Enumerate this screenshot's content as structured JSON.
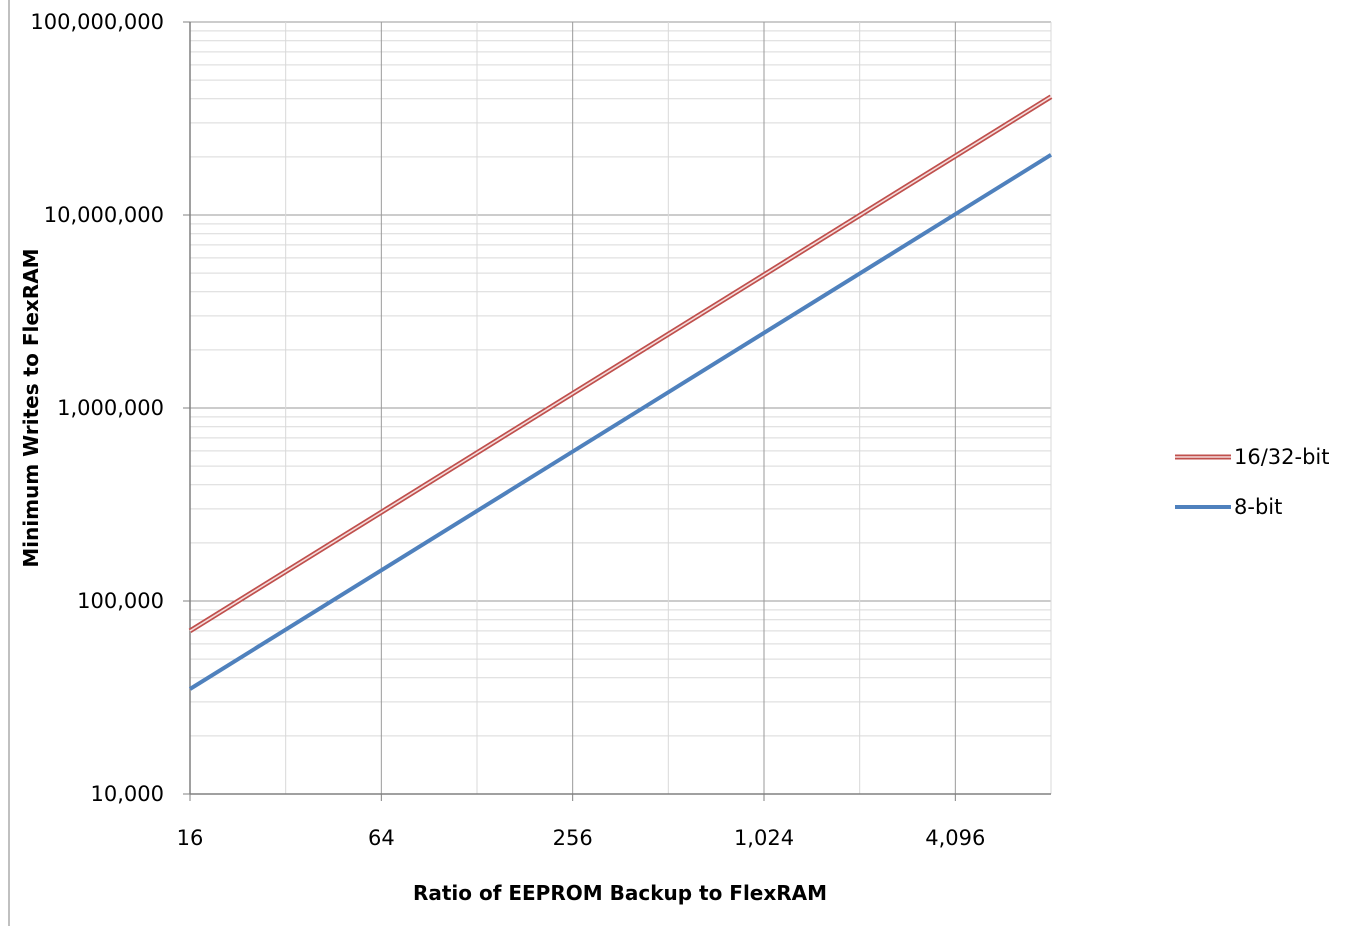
{
  "chart_data": {
    "type": "line",
    "title": "",
    "xlabel": "Ratio of EEPROM Backup to FlexRAM",
    "ylabel": "Minimum Writes to FlexRAM",
    "x_scale": "log2",
    "y_scale": "log10",
    "xlim": [
      16,
      8192
    ],
    "ylim": [
      10000,
      100000000
    ],
    "x_tick_values": [
      16,
      64,
      256,
      1024,
      4096
    ],
    "x_tick_labels": [
      "16",
      "64",
      "256",
      "1,024",
      "4,096"
    ],
    "y_tick_values": [
      10000,
      100000,
      1000000,
      10000000,
      100000000
    ],
    "y_tick_labels": [
      "10,000",
      "100,000",
      "1,000,000",
      "10,000,000",
      "100,000,000"
    ],
    "grid": true,
    "legend_position": "right",
    "x": [
      16,
      8192
    ],
    "series": [
      {
        "name": "16/32-bit",
        "values": [
          70000,
          41000000
        ],
        "color": "#c0504d",
        "style": "double"
      },
      {
        "name": "8-bit",
        "values": [
          35000,
          20500000
        ],
        "color": "#4f81bd",
        "style": "solid"
      }
    ]
  }
}
